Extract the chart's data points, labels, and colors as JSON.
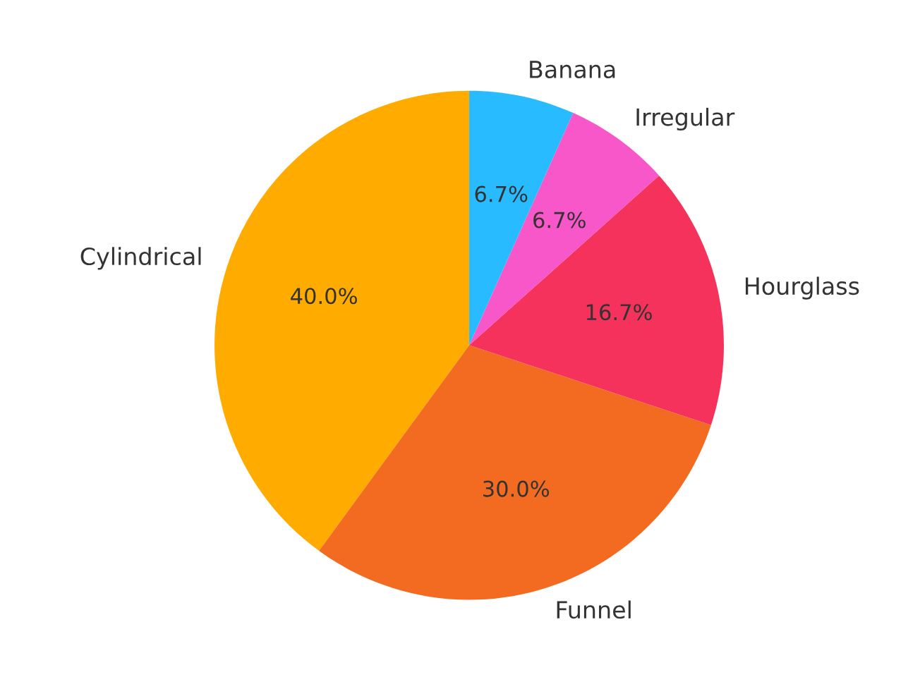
{
  "chart_data": {
    "type": "pie",
    "categories": [
      "Cylindrical",
      "Funnel",
      "Hourglass",
      "Irregular",
      "Banana"
    ],
    "values": [
      40.0,
      30.0,
      16.7,
      6.7,
      6.7
    ],
    "value_labels": [
      "40.0%",
      "30.0%",
      "16.7%",
      "6.7%",
      "6.7%"
    ],
    "colors": [
      "#ffab00",
      "#f26b21",
      "#f5325b",
      "#f757c9",
      "#29bbff"
    ],
    "legend": false
  }
}
